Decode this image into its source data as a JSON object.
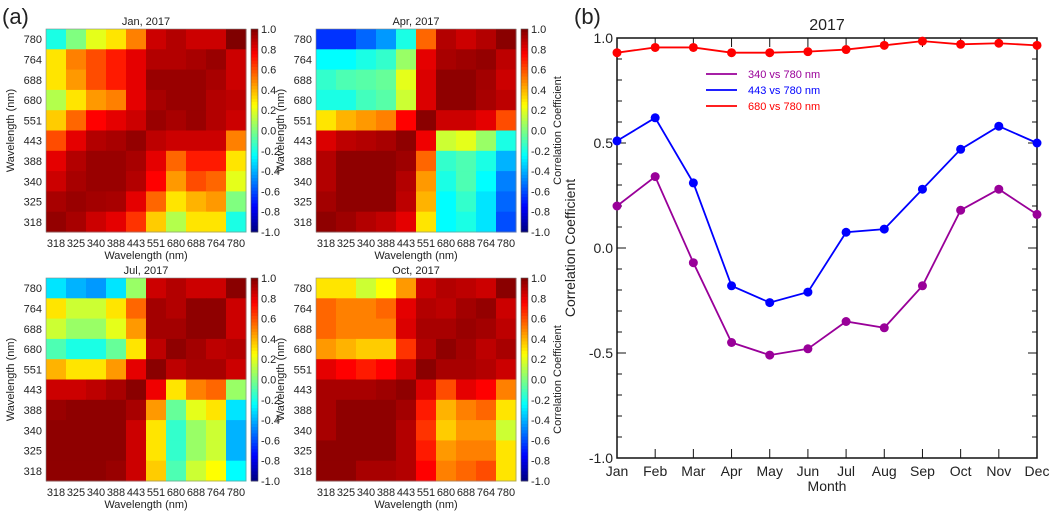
{
  "panel_labels": {
    "a": "(a)",
    "b": "(b)"
  },
  "chart_data": [
    {
      "type": "heatmap",
      "title": "Jan, 2017",
      "xlabel": "Wavelength (nm)",
      "ylabel": "Wavelength (nm)",
      "x_categories": [
        "318",
        "325",
        "340",
        "388",
        "443",
        "551",
        "680",
        "688",
        "764",
        "780"
      ],
      "y_categories_top_to_bottom": [
        "780",
        "764",
        "688",
        "680",
        "551",
        "443",
        "388",
        "340",
        "325",
        "318"
      ],
      "colorbar": {
        "range": [
          -1,
          1
        ],
        "ticks": [
          "1.0",
          "0.8",
          "0.6",
          "0.4",
          "0.2",
          "0.0",
          "-0.2",
          "-0.4",
          "-0.6",
          "-0.8",
          "-1.0"
        ],
        "label": ""
      },
      "values": [
        [
          -0.2,
          0.0,
          0.2,
          0.3,
          0.5,
          0.85,
          0.9,
          0.85,
          0.85,
          1.0
        ],
        [
          0.3,
          0.5,
          0.6,
          0.7,
          0.8,
          0.9,
          0.9,
          0.92,
          0.95,
          0.85
        ],
        [
          0.3,
          0.45,
          0.6,
          0.7,
          0.8,
          0.95,
          0.95,
          0.95,
          0.92,
          0.85
        ],
        [
          0.1,
          0.3,
          0.45,
          0.5,
          0.8,
          0.92,
          0.95,
          0.95,
          0.9,
          0.88
        ],
        [
          0.35,
          0.55,
          0.75,
          0.8,
          0.85,
          0.95,
          0.92,
          0.95,
          0.9,
          0.85
        ],
        [
          0.6,
          0.8,
          0.9,
          0.92,
          0.96,
          0.88,
          0.85,
          0.85,
          0.85,
          0.5
        ],
        [
          0.8,
          0.9,
          0.95,
          0.95,
          0.92,
          0.8,
          0.55,
          0.7,
          0.7,
          0.3
        ],
        [
          0.85,
          0.92,
          0.95,
          0.95,
          0.9,
          0.75,
          0.45,
          0.6,
          0.55,
          0.2
        ],
        [
          0.92,
          0.95,
          0.93,
          0.92,
          0.8,
          0.55,
          0.3,
          0.4,
          0.45,
          0.0
        ],
        [
          0.96,
          0.92,
          0.85,
          0.8,
          0.65,
          0.35,
          0.1,
          0.3,
          0.3,
          -0.2
        ]
      ]
    },
    {
      "type": "heatmap",
      "title": "Apr, 2017",
      "xlabel": "Wavelength (nm)",
      "ylabel": "Wavelength (nm)",
      "x_categories": [
        "318",
        "325",
        "340",
        "388",
        "443",
        "551",
        "680",
        "688",
        "764",
        "780"
      ],
      "y_categories_top_to_bottom": [
        "780",
        "764",
        "688",
        "680",
        "551",
        "443",
        "388",
        "340",
        "325",
        "318"
      ],
      "colorbar": {
        "range": [
          -1,
          1
        ],
        "ticks": [
          "1.0",
          "0.8",
          "0.6",
          "0.4",
          "0.2",
          "0.0",
          "-0.2",
          "-0.4",
          "-0.6",
          "-0.8",
          "-1.0"
        ],
        "label": "Correlation Coefficient"
      },
      "values": [
        [
          -0.65,
          -0.65,
          -0.55,
          -0.45,
          -0.2,
          0.55,
          0.9,
          0.85,
          0.9,
          0.98
        ],
        [
          -0.25,
          -0.25,
          -0.2,
          -0.15,
          0.05,
          0.8,
          0.92,
          0.94,
          0.96,
          0.88
        ],
        [
          -0.15,
          -0.1,
          -0.08,
          -0.05,
          0.2,
          0.82,
          0.97,
          0.97,
          0.93,
          0.85
        ],
        [
          -0.2,
          -0.2,
          -0.12,
          -0.08,
          0.15,
          0.82,
          0.97,
          0.97,
          0.92,
          0.88
        ],
        [
          0.3,
          0.4,
          0.45,
          0.5,
          0.75,
          0.98,
          0.85,
          0.85,
          0.8,
          0.6
        ],
        [
          0.82,
          0.88,
          0.9,
          0.92,
          0.97,
          0.78,
          0.15,
          0.2,
          0.05,
          -0.2
        ],
        [
          0.9,
          0.97,
          0.97,
          0.97,
          0.94,
          0.55,
          -0.15,
          -0.1,
          -0.2,
          -0.4
        ],
        [
          0.9,
          0.97,
          0.97,
          0.97,
          0.9,
          0.45,
          -0.2,
          -0.1,
          -0.25,
          -0.5
        ],
        [
          0.93,
          0.97,
          0.97,
          0.97,
          0.88,
          0.4,
          -0.25,
          -0.15,
          -0.3,
          -0.55
        ],
        [
          0.97,
          0.94,
          0.9,
          0.87,
          0.8,
          0.3,
          -0.25,
          -0.2,
          -0.3,
          -0.6
        ]
      ]
    },
    {
      "type": "heatmap",
      "title": "Jul, 2017",
      "xlabel": "Wavelength (nm)",
      "ylabel": "Wavelength (nm)",
      "x_categories": [
        "318",
        "325",
        "340",
        "388",
        "443",
        "551",
        "680",
        "688",
        "764",
        "780"
      ],
      "y_categories_top_to_bottom": [
        "780",
        "764",
        "688",
        "680",
        "551",
        "443",
        "388",
        "340",
        "325",
        "318"
      ],
      "colorbar": {
        "range": [
          -1,
          1
        ],
        "ticks": [
          "1.0",
          "0.8",
          "0.6",
          "0.4",
          "0.2",
          "0.0",
          "-0.2",
          "-0.4",
          "-0.6",
          "-0.8",
          "-1.0"
        ],
        "label": ""
      },
      "values": [
        [
          -0.3,
          -0.4,
          -0.45,
          -0.3,
          0.05,
          0.85,
          0.9,
          0.85,
          0.85,
          0.98
        ],
        [
          0.3,
          0.15,
          0.15,
          0.3,
          0.55,
          0.93,
          0.9,
          0.97,
          0.97,
          0.85
        ],
        [
          0.15,
          0.05,
          0.05,
          0.2,
          0.45,
          0.93,
          0.93,
          0.97,
          0.97,
          0.85
        ],
        [
          -0.1,
          -0.2,
          -0.2,
          -0.05,
          0.3,
          0.88,
          0.97,
          0.93,
          0.88,
          0.9
        ],
        [
          0.4,
          0.3,
          0.3,
          0.45,
          0.8,
          0.98,
          0.88,
          0.92,
          0.92,
          0.85
        ],
        [
          0.85,
          0.85,
          0.88,
          0.92,
          0.98,
          0.78,
          0.3,
          0.5,
          0.55,
          0.05
        ],
        [
          0.95,
          0.97,
          0.97,
          0.97,
          0.92,
          0.45,
          -0.05,
          0.2,
          0.3,
          -0.3
        ],
        [
          0.97,
          0.97,
          0.97,
          0.97,
          0.85,
          0.3,
          -0.15,
          0.05,
          0.15,
          -0.4
        ],
        [
          0.97,
          0.97,
          0.97,
          0.97,
          0.85,
          0.3,
          -0.15,
          0.05,
          0.15,
          -0.4
        ],
        [
          0.97,
          0.97,
          0.97,
          0.95,
          0.85,
          0.35,
          -0.1,
          0.15,
          0.25,
          -0.25
        ]
      ]
    },
    {
      "type": "heatmap",
      "title": "Oct, 2017",
      "xlabel": "Wavelength (nm)",
      "ylabel": "Wavelength (nm)",
      "x_categories": [
        "318",
        "325",
        "340",
        "388",
        "443",
        "551",
        "680",
        "688",
        "764",
        "780"
      ],
      "y_categories_top_to_bottom": [
        "780",
        "764",
        "688",
        "680",
        "551",
        "443",
        "388",
        "340",
        "325",
        "318"
      ],
      "colorbar": {
        "range": [
          -1,
          1
        ],
        "ticks": [
          "1.0",
          "0.8",
          "0.6",
          "0.4",
          "0.2",
          "0.0",
          "-0.2",
          "-0.4",
          "-0.6",
          "-0.8",
          "-1.0"
        ],
        "label": "Correlation Coefficient"
      },
      "values": [
        [
          0.3,
          0.3,
          0.15,
          0.25,
          0.45,
          0.85,
          0.9,
          0.88,
          0.85,
          0.98
        ],
        [
          0.55,
          0.5,
          0.5,
          0.55,
          0.8,
          0.9,
          0.88,
          0.93,
          0.96,
          0.85
        ],
        [
          0.55,
          0.5,
          0.5,
          0.5,
          0.82,
          0.92,
          0.92,
          0.95,
          0.93,
          0.88
        ],
        [
          0.45,
          0.4,
          0.35,
          0.35,
          0.65,
          0.9,
          0.97,
          0.93,
          0.88,
          0.92
        ],
        [
          0.8,
          0.75,
          0.7,
          0.75,
          0.85,
          0.98,
          0.92,
          0.92,
          0.9,
          0.85
        ],
        [
          0.92,
          0.92,
          0.92,
          0.94,
          0.97,
          0.82,
          0.6,
          0.8,
          0.75,
          0.5
        ],
        [
          0.92,
          0.97,
          0.97,
          0.97,
          0.93,
          0.7,
          0.4,
          0.5,
          0.55,
          0.3
        ],
        [
          0.92,
          0.97,
          0.97,
          0.97,
          0.9,
          0.65,
          0.35,
          0.45,
          0.45,
          0.15
        ],
        [
          0.97,
          0.97,
          0.97,
          0.97,
          0.9,
          0.7,
          0.45,
          0.5,
          0.5,
          0.3
        ],
        [
          0.97,
          0.97,
          0.92,
          0.92,
          0.9,
          0.75,
          0.5,
          0.55,
          0.6,
          0.3
        ]
      ]
    },
    {
      "type": "line",
      "title": "2017",
      "xlabel": "Month",
      "ylabel": "Correlation Coefficient",
      "categories": [
        "Jan",
        "Feb",
        "Mar",
        "Apr",
        "May",
        "Jun",
        "Jul",
        "Aug",
        "Sep",
        "Oct",
        "Nov",
        "Dec"
      ],
      "ylim": [
        -1.0,
        1.0
      ],
      "yticks": [
        "-1.0",
        "-0.5",
        "0.0",
        "0.5",
        "1.0"
      ],
      "legend_position": "upper-left",
      "series": [
        {
          "name": "340 vs 780 nm",
          "color": "#990099",
          "values": [
            0.2,
            0.34,
            -0.07,
            -0.45,
            -0.51,
            -0.48,
            -0.35,
            -0.38,
            -0.18,
            0.18,
            0.28,
            0.16
          ]
        },
        {
          "name": "443 vs 780 nm",
          "color": "#0000ff",
          "values": [
            0.51,
            0.62,
            0.31,
            -0.18,
            -0.26,
            -0.21,
            0.075,
            0.09,
            0.28,
            0.47,
            0.58,
            0.5
          ]
        },
        {
          "name": "680 vs 780 nm",
          "color": "#ff0000",
          "values": [
            0.93,
            0.955,
            0.955,
            0.93,
            0.93,
            0.935,
            0.945,
            0.965,
            0.985,
            0.97,
            0.975,
            0.965
          ]
        }
      ]
    }
  ]
}
